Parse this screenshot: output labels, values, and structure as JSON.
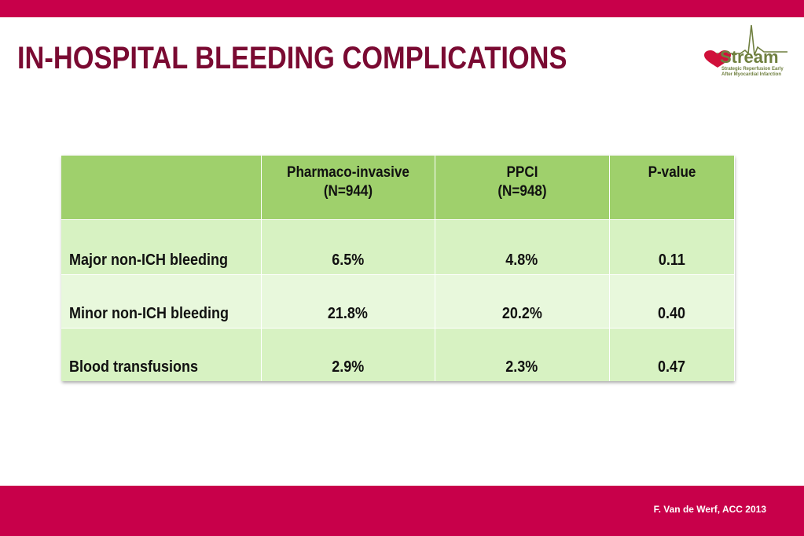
{
  "slide": {
    "title": "IN-HOSPITAL BLEEDING COMPLICATIONS",
    "credit": "F. Van de Werf, ACC 2013",
    "colors": {
      "accent_bar": "#c8004a",
      "title": "#7a0a32",
      "header_green": "#9fd06c",
      "row_green": "#d7f2c2"
    }
  },
  "logo": {
    "word": "Stream",
    "tagline_line1": "Strategic Reperfusion Early",
    "tagline_line2": "After Myocardial Infarction"
  },
  "table": {
    "columns": [
      {
        "line1": "",
        "line2": ""
      },
      {
        "line1": "Pharmaco-invasive",
        "line2": "(N=944)"
      },
      {
        "line1": "PPCI",
        "line2": "(N=948)"
      },
      {
        "line1": "P-value",
        "line2": ""
      }
    ],
    "rows": [
      {
        "label": "Major non-ICH bleeding",
        "pharmaco": "6.5%",
        "ppci": "4.8%",
        "p": "0.11"
      },
      {
        "label": "Minor non-ICH bleeding",
        "pharmaco": "21.8%",
        "ppci": "20.2%",
        "p": "0.40"
      },
      {
        "label": "Blood transfusions",
        "pharmaco": "2.9%",
        "ppci": "2.3%",
        "p": "0.47"
      }
    ]
  }
}
